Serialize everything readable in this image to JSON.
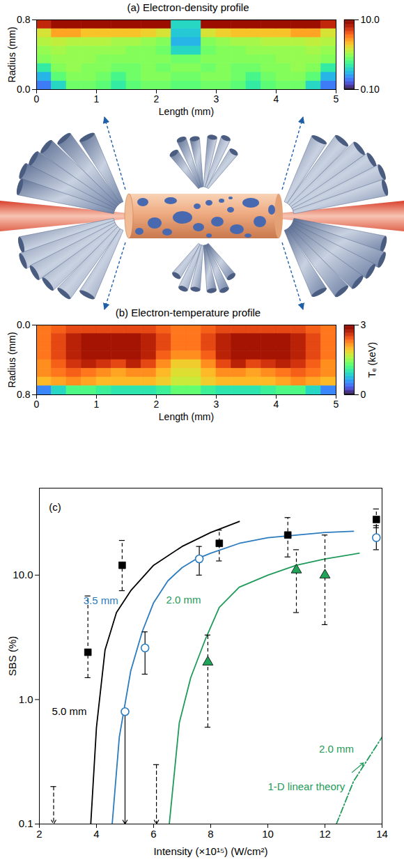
{
  "chart_data": [
    {
      "type": "heatmap",
      "title": "(a) Electron-density profile",
      "xlabel": "Length (mm)",
      "ylabel": "Radius (mm)",
      "xlim": [
        0,
        5
      ],
      "xticks": [
        0,
        1,
        2,
        3,
        4,
        5
      ],
      "ylim": [
        0,
        0.8
      ],
      "yticks": [
        {
          "value": 0,
          "label": "0.0"
        },
        {
          "value": 0.8,
          "label": "0.8"
        }
      ],
      "x_edges": [
        0,
        0.25,
        0.5,
        0.75,
        1,
        1.25,
        1.5,
        1.75,
        2,
        2.25,
        2.5,
        2.75,
        3,
        3.25,
        3.5,
        3.75,
        4,
        4.25,
        4.5,
        4.75,
        5
      ],
      "y_edges": [
        0,
        0.1,
        0.2,
        0.3,
        0.4,
        0.5,
        0.6,
        0.7,
        0.8
      ],
      "z": [
        [
          0.2,
          0.4,
          0.8,
          0.8,
          0.7,
          0.5,
          0.7,
          0.8,
          0.8,
          0.7,
          0.7,
          0.8,
          0.8,
          0.7,
          0.5,
          0.7,
          0.8,
          0.8,
          0.4,
          0.2
        ],
        [
          0.3,
          0.7,
          0.9,
          0.9,
          0.8,
          0.6,
          0.8,
          0.9,
          0.9,
          0.8,
          0.8,
          0.9,
          0.9,
          0.8,
          0.6,
          0.8,
          0.9,
          0.9,
          0.7,
          0.3
        ],
        [
          0.5,
          0.9,
          1.0,
          0.9,
          0.9,
          0.8,
          0.8,
          0.9,
          0.8,
          0.9,
          0.9,
          0.8,
          0.9,
          0.8,
          0.8,
          0.9,
          0.9,
          1.0,
          0.9,
          0.5
        ],
        [
          0.9,
          1.0,
          1.0,
          1.0,
          0.9,
          0.9,
          0.9,
          0.9,
          0.9,
          0.8,
          0.8,
          0.9,
          0.9,
          0.9,
          0.9,
          0.9,
          1.0,
          1.0,
          1.0,
          0.9
        ],
        [
          1.0,
          1.1,
          1.0,
          1.0,
          1.0,
          1.0,
          0.9,
          0.9,
          0.8,
          0.4,
          0.4,
          0.8,
          0.9,
          0.9,
          1.0,
          1.0,
          1.0,
          1.0,
          1.1,
          1.0
        ],
        [
          1.2,
          1.3,
          1.2,
          1.2,
          1.2,
          1.1,
          1.1,
          1.0,
          0.9,
          0.3,
          0.3,
          0.9,
          1.0,
          1.1,
          1.1,
          1.2,
          1.2,
          1.2,
          1.3,
          1.2
        ],
        [
          1.5,
          2.5,
          2.5,
          2,
          2,
          2,
          2,
          1.8,
          1.5,
          0.35,
          0.35,
          1.5,
          1.8,
          2,
          2,
          2,
          2,
          2.5,
          2.5,
          1.5
        ],
        [
          6,
          8,
          8,
          8,
          8,
          8,
          8,
          8,
          8,
          0.4,
          0.4,
          8,
          8,
          8,
          8,
          8,
          8,
          8,
          8,
          6
        ]
      ],
      "colorbar": {
        "log": true,
        "lim": [
          0.1,
          10
        ],
        "ticks": [
          {
            "value": 0.1,
            "label": "0.10"
          },
          {
            "value": 10,
            "label": "10.0"
          }
        ]
      }
    },
    {
      "type": "heatmap",
      "title": "(b) Electron-temperature profile",
      "xlabel": "Length (mm)",
      "ylabel": "Radius (mm)",
      "xlim": [
        0,
        5
      ],
      "xticks": [
        0,
        1,
        2,
        3,
        4,
        5
      ],
      "ylim": [
        0.8,
        0
      ],
      "yticks": [
        {
          "value": 0,
          "label": "0.0"
        },
        {
          "value": 0.8,
          "label": "0.8"
        }
      ],
      "x_edges": [
        0,
        0.25,
        0.5,
        0.75,
        1,
        1.25,
        1.5,
        1.75,
        2,
        2.25,
        2.5,
        2.75,
        3,
        3.25,
        3.5,
        3.75,
        4,
        4.25,
        4.5,
        4.75,
        5
      ],
      "y_edges": [
        0,
        0.1,
        0.2,
        0.3,
        0.4,
        0.5,
        0.6,
        0.7,
        0.8
      ],
      "z": [
        [
          2.3,
          2.4,
          2.5,
          2.5,
          2.5,
          2.5,
          2.5,
          2.5,
          2.4,
          2.3,
          2.3,
          2.4,
          2.5,
          2.5,
          2.5,
          2.5,
          2.5,
          2.5,
          2.4,
          2.3
        ],
        [
          2.3,
          2.5,
          2.7,
          2.8,
          2.8,
          2.8,
          2.8,
          2.7,
          2.5,
          2.3,
          2.3,
          2.5,
          2.7,
          2.8,
          2.8,
          2.8,
          2.8,
          2.7,
          2.5,
          2.3
        ],
        [
          2.3,
          2.5,
          2.7,
          2.8,
          2.8,
          2.8,
          2.8,
          2.7,
          2.5,
          2.3,
          2.3,
          2.5,
          2.7,
          2.8,
          2.8,
          2.8,
          2.8,
          2.7,
          2.5,
          2.3
        ],
        [
          2.3,
          2.5,
          2.7,
          2.8,
          2.8,
          2.8,
          2.8,
          2.7,
          2.4,
          2.2,
          2.2,
          2.4,
          2.7,
          2.8,
          2.8,
          2.8,
          2.8,
          2.7,
          2.5,
          2.3
        ],
        [
          2.2,
          2.4,
          2.6,
          2.7,
          2.6,
          2.5,
          2.7,
          2.5,
          2.2,
          1.9,
          1.9,
          2.2,
          2.5,
          2.7,
          2.5,
          2.6,
          2.7,
          2.6,
          2.4,
          2.2
        ],
        [
          2.2,
          2.3,
          2.4,
          2.3,
          2.2,
          2.1,
          2.2,
          2.2,
          2.0,
          1.8,
          1.8,
          2.0,
          2.2,
          2.2,
          2.1,
          2.2,
          2.3,
          2.4,
          2.3,
          2.2
        ],
        [
          2.0,
          2.1,
          2.2,
          2.1,
          2.0,
          2.0,
          2.0,
          2.0,
          1.9,
          1.7,
          1.7,
          1.9,
          2.0,
          2.0,
          2.0,
          2.0,
          2.1,
          2.2,
          2.1,
          2.0
        ],
        [
          0.5,
          0.9,
          1.2,
          1.2,
          1.1,
          1.0,
          1.0,
          1.0,
          1.1,
          1.3,
          1.3,
          1.1,
          1.0,
          1.0,
          1.0,
          1.1,
          1.2,
          1.2,
          0.9,
          0.5
        ]
      ],
      "colorbar": {
        "label": "Tₑ (keV)",
        "lim": [
          0,
          3
        ],
        "ticks": [
          0,
          3
        ]
      }
    },
    {
      "type": "scatter",
      "xlabel": "Intensity (×10¹⁵) (W/cm²)",
      "ylabel": "SBS (%)",
      "xlim": [
        2,
        14
      ],
      "xticks": [
        2,
        4,
        6,
        8,
        10,
        12,
        14
      ],
      "ylim": [
        0.1,
        50
      ],
      "yticks": [
        0.1,
        {
          "value": 1,
          "label": "1.0"
        },
        {
          "value": 10,
          "label": "10.0"
        }
      ],
      "log": "y",
      "grid": false,
      "series": [
        {
          "type": "line",
          "color": "#000000",
          "line_style": "solid",
          "x": [
            3.8,
            4.0,
            4.3,
            4.7,
            5.2,
            6.0,
            7.0,
            8.0,
            9.0
          ],
          "values": [
            0.1,
            0.6,
            2.5,
            5,
            7.5,
            12,
            17,
            22,
            27
          ]
        },
        {
          "type": "line",
          "color": "#2b7bbf",
          "line_style": "solid",
          "x": [
            4.55,
            4.8,
            5.2,
            5.6,
            6.0,
            6.5,
            7.0,
            7.5,
            8.0,
            9.0,
            10.0,
            11.0,
            12.0,
            13.0
          ],
          "values": [
            0.1,
            0.5,
            1.7,
            3.5,
            6,
            9,
            11.5,
            13.5,
            15,
            18,
            20,
            21,
            22,
            22.5
          ]
        },
        {
          "type": "line",
          "color": "#1e9a5a",
          "line_style": "solid",
          "x": [
            6.55,
            6.9,
            7.3,
            7.8,
            8.3,
            9.0,
            10.0,
            11.0,
            12.0,
            13.2
          ],
          "values": [
            0.1,
            0.65,
            1.5,
            3,
            5.5,
            8,
            10,
            12,
            13.5,
            15
          ]
        },
        {
          "type": "line",
          "color": "#1e9a5a",
          "line_style": "dashdot",
          "x": [
            12.4,
            13.0,
            14.0
          ],
          "values": [
            0.1,
            0.22,
            0.5
          ]
        },
        {
          "type": "scatter",
          "marker": "square",
          "color": "#000000",
          "line_style": "dashed",
          "x": [
            3.7,
            4.9,
            8.3,
            10.7,
            13.8
          ],
          "values": [
            2.4,
            12,
            18,
            21,
            28
          ],
          "err_low": [
            1.5,
            7.5,
            13,
            14,
            24
          ],
          "err_high": [
            6.8,
            19,
            23,
            29,
            34
          ],
          "upper_limits": {
            "x": [
              2.5
            ],
            "values": [
              0.2
            ]
          }
        },
        {
          "type": "scatter",
          "marker": "open_circle",
          "color": "#2b7bbf",
          "line_style": "solid",
          "x": [
            5.0,
            5.7,
            7.6,
            13.8
          ],
          "values": [
            0.8,
            2.6,
            13.5,
            20
          ],
          "err_low": [
            null,
            1.6,
            10,
            16
          ],
          "err_high": [
            0.8,
            3.5,
            17,
            25
          ]
        },
        {
          "type": "scatter",
          "marker": "triangle",
          "color": "#22a35a",
          "line_style": "dashed",
          "x": [
            7.9,
            11.0,
            12.0
          ],
          "values": [
            2.0,
            11,
            10
          ],
          "err_low": [
            0.6,
            5,
            4
          ],
          "err_high": [
            3.3,
            16,
            21
          ],
          "upper_limits": {
            "x": [
              6.1
            ],
            "values": [
              0.3
            ]
          }
        }
      ],
      "annotations": [
        {
          "text": "(c)",
          "x": 2.55,
          "y": 35,
          "color": "#000000"
        },
        {
          "text": "5.0 mm",
          "x": 3.05,
          "y": 0.8,
          "color": "#000000"
        },
        {
          "text": "3.5 mm",
          "x": 4.15,
          "y": 6.2,
          "color": "#2b7bbf"
        },
        {
          "text": "2.0 mm",
          "x": 7.05,
          "y": 6.3,
          "color": "#1e9a5a"
        },
        {
          "text": "2.0 mm",
          "x": 12.4,
          "y": 0.4,
          "color": "#1e9a5a"
        },
        {
          "text": "1-D linear theory",
          "x": 11.35,
          "y": 0.2,
          "color": "#1e9a5a",
          "arrow_from": [
            12.95,
            0.26
          ],
          "arrow_to": [
            13.35,
            0.31
          ]
        }
      ]
    }
  ]
}
